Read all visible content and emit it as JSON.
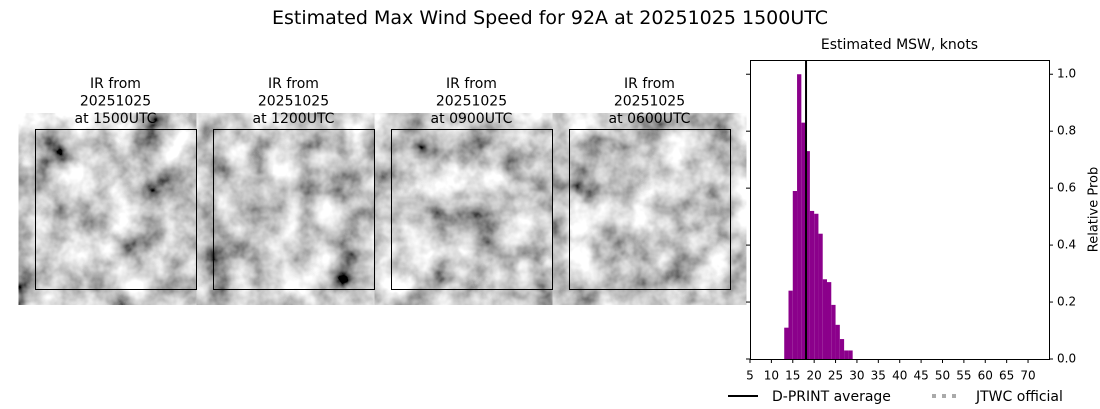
{
  "title": "Estimated Max Wind Speed for 92A at 20251025 1500UTC",
  "panels": [
    {
      "lines": [
        "IR from",
        "20251025",
        "at 1500UTC"
      ]
    },
    {
      "lines": [
        "IR from",
        "20251025",
        "at 1200UTC"
      ]
    },
    {
      "lines": [
        "IR from",
        "20251025",
        "at 0900UTC"
      ]
    },
    {
      "lines": [
        "IR from",
        "20251025",
        "at 0600UTC"
      ]
    }
  ],
  "chart_data": {
    "type": "histogram",
    "title": "Estimated MSW, knots",
    "y_label": "Relative Prob",
    "bins": [
      13,
      14,
      15,
      16,
      17,
      18,
      19,
      20,
      21,
      22,
      23,
      24,
      25,
      26,
      27,
      28,
      29
    ],
    "values": [
      0.11,
      0.24,
      0.59,
      1.0,
      0.83,
      0.73,
      0.52,
      0.51,
      0.44,
      0.28,
      0.27,
      0.19,
      0.12,
      0.07,
      0.03,
      0.03
    ],
    "color": "#8b008b",
    "dprint_avg": 18.1,
    "xlim": [
      5,
      74.9
    ],
    "xticks": [
      5,
      10,
      15,
      20,
      25,
      30,
      35,
      40,
      45,
      50,
      55,
      60,
      65,
      70
    ],
    "ylim": [
      0,
      1.05
    ],
    "yticks": [
      {
        "value": 0,
        "label": "0.0"
      },
      0.2,
      0.4,
      0.6,
      0.8,
      {
        "value": 1,
        "label": "1.0"
      }
    ],
    "legend": [
      {
        "name": "D-PRINT average",
        "color": "#000000",
        "style": "solid"
      },
      {
        "name": "JTWC official",
        "color": "#aaaaaa",
        "style": "dotted"
      }
    ]
  }
}
